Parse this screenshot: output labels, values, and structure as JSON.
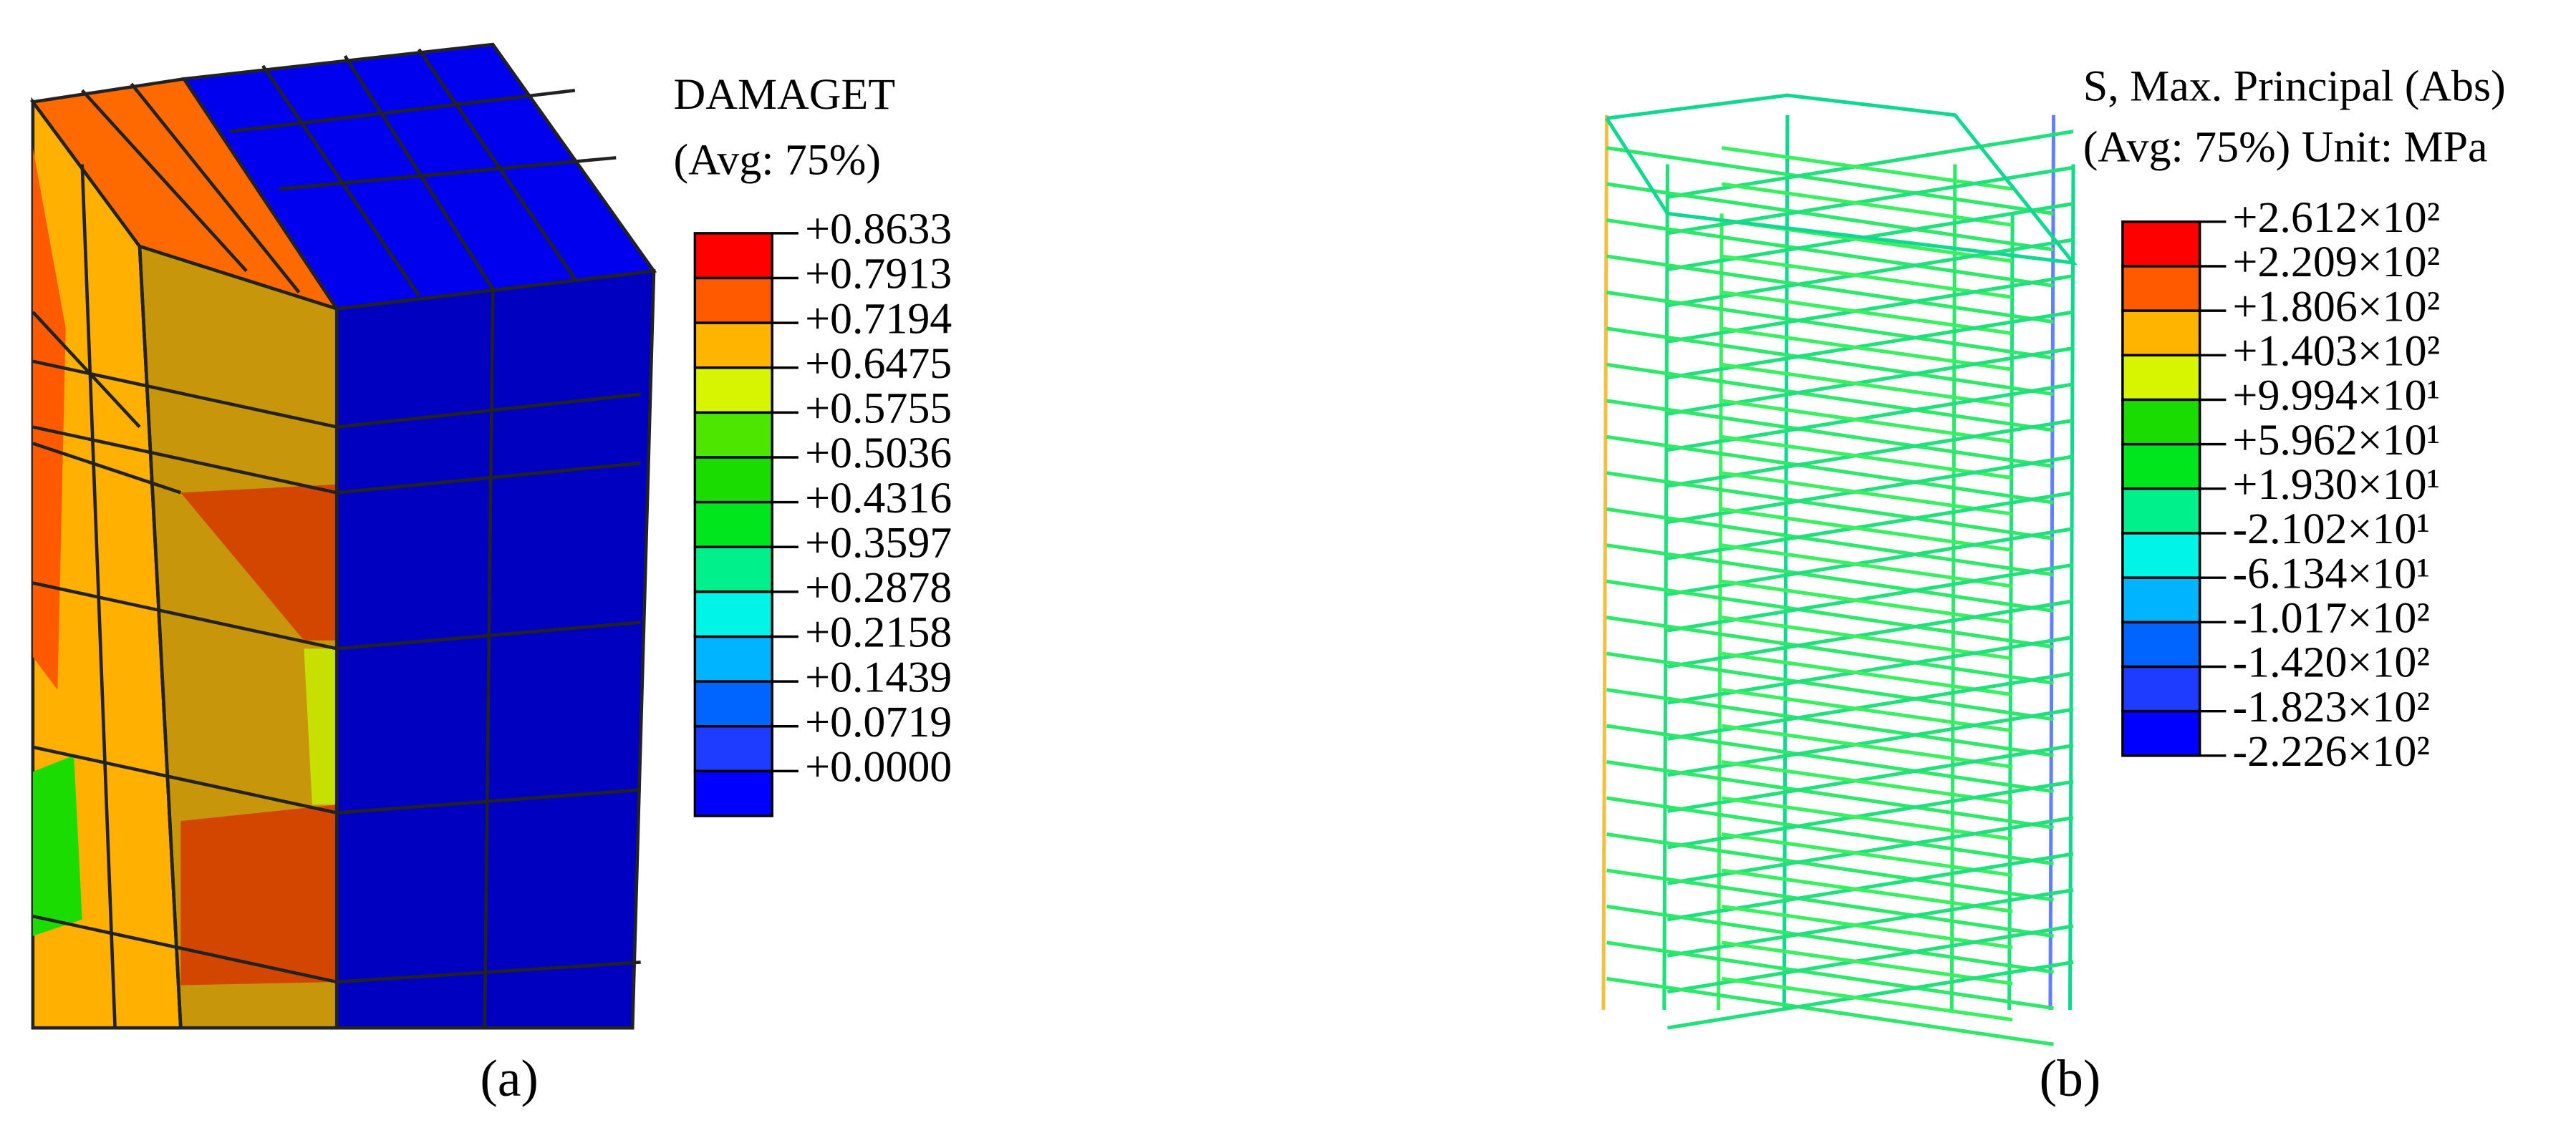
{
  "panels": [
    {
      "title": [
        "DAMAGET",
        "(Avg: 75%)"
      ],
      "legend": {
        "labels": [
          "+0.8633",
          "+0.7913",
          "+0.7194",
          "+0.6475",
          "+0.5755",
          "+0.5036",
          "+0.4316",
          "+0.3597",
          "+0.2878",
          "+0.2158",
          "+0.1439",
          "+0.0719",
          "+0.0000"
        ],
        "colors": [
          "#ff0000",
          "#ff5a00",
          "#ffb400",
          "#d8f500",
          "#4ce600",
          "#1bdc00",
          "#00e61c",
          "#00f08c",
          "#00f5e6",
          "#00b4ff",
          "#0064ff",
          "#1e3cff",
          "#0000ff"
        ]
      },
      "caption": "(a)"
    },
    {
      "title": [
        "S, Max. Principal (Abs)",
        "(Avg: 75%)  Unit: MPa"
      ],
      "legend": {
        "labels": [
          "+2.612×10²",
          "+2.209×10²",
          "+1.806×10²",
          "+1.403×10²",
          "+9.994×10¹",
          "+5.962×10¹",
          "+1.930×10¹",
          "-2.102×10¹",
          "-6.134×10¹",
          "-1.017×10²",
          "-1.420×10²",
          "-1.823×10²",
          "-2.226×10²"
        ],
        "colors": [
          "#ff0000",
          "#ff5a00",
          "#ffb400",
          "#d8f500",
          "#1bdc00",
          "#00e61c",
          "#00f08c",
          "#00f5e6",
          "#00b4ff",
          "#0064ff",
          "#1e3cff",
          "#0000ff"
        ]
      },
      "caption": "(b)"
    }
  ]
}
